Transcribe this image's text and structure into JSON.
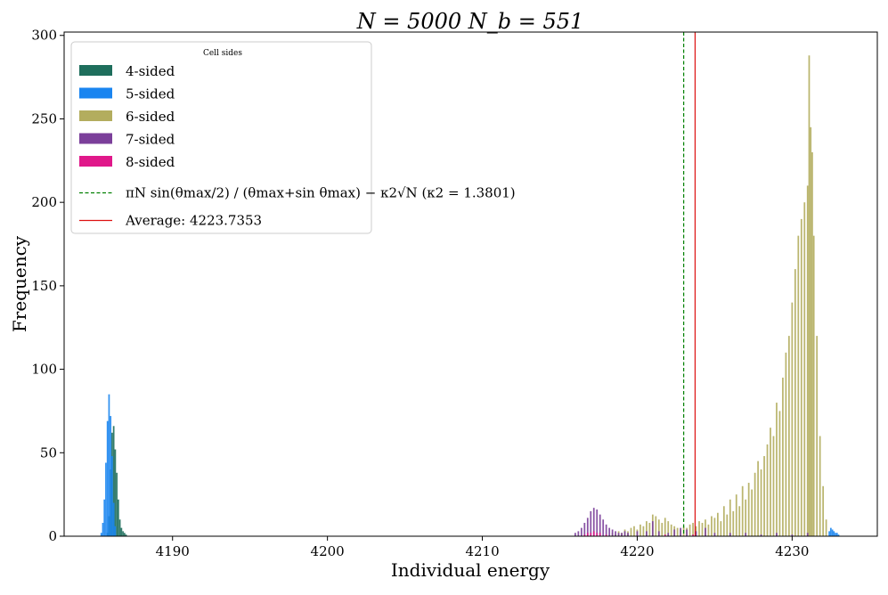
{
  "chart_data": {
    "type": "bar",
    "title": "N = 5000 N_b = 551",
    "xlabel": "Individual energy",
    "ylabel": "Frequency",
    "xlim": [
      4183.0,
      4235.5
    ],
    "ylim": [
      0,
      302
    ],
    "xticks": [
      4190,
      4200,
      4210,
      4220,
      4230
    ],
    "yticks": [
      0,
      50,
      100,
      150,
      200,
      250,
      300
    ],
    "grid": false,
    "legend_title": "Cell sides",
    "legend_position": "top-left",
    "bin_width": 0.1,
    "series": [
      {
        "name": "4-sided",
        "color": "#1e6e5c",
        "x": [
          4185.8,
          4185.9,
          4186.0,
          4186.1,
          4186.2,
          4186.3,
          4186.4,
          4186.5,
          4186.6,
          4186.7,
          4186.8,
          4186.9,
          4187.0
        ],
        "values": [
          2,
          12,
          40,
          62,
          66,
          52,
          38,
          22,
          10,
          5,
          3,
          2,
          1
        ]
      },
      {
        "name": "5-sided",
        "color": "#1a85f0",
        "x": [
          4185.4,
          4185.5,
          4185.6,
          4185.7,
          4185.8,
          4185.9,
          4186.0,
          4186.1,
          4186.2,
          4186.3,
          4232.4,
          4232.5,
          4232.6,
          4232.7,
          4232.8,
          4232.9,
          4233.0
        ],
        "values": [
          2,
          8,
          22,
          44,
          69,
          85,
          72,
          48,
          20,
          6,
          3,
          5,
          4,
          3,
          2,
          2,
          1
        ]
      },
      {
        "name": "6-sided",
        "color": "#b3ad5e",
        "x": [
          4218.4,
          4218.6,
          4218.8,
          4219.0,
          4219.2,
          4219.4,
          4219.6,
          4219.8,
          4220.0,
          4220.2,
          4220.4,
          4220.6,
          4220.8,
          4221.0,
          4221.2,
          4221.4,
          4221.6,
          4221.8,
          4222.0,
          4222.2,
          4222.4,
          4222.6,
          4222.8,
          4223.0,
          4223.2,
          4223.4,
          4223.6,
          4223.8,
          4224.0,
          4224.2,
          4224.4,
          4224.6,
          4224.8,
          4225.0,
          4225.2,
          4225.4,
          4225.6,
          4225.8,
          4226.0,
          4226.2,
          4226.4,
          4226.6,
          4226.8,
          4227.0,
          4227.2,
          4227.4,
          4227.6,
          4227.8,
          4228.0,
          4228.2,
          4228.4,
          4228.6,
          4228.8,
          4229.0,
          4229.2,
          4229.4,
          4229.6,
          4229.8,
          4230.0,
          4230.2,
          4230.4,
          4230.6,
          4230.8,
          4231.0,
          4231.1,
          4231.2,
          4231.3,
          4231.4,
          4231.6,
          4231.8,
          4232.0,
          4232.2
        ],
        "values": [
          2,
          1,
          3,
          2,
          4,
          3,
          5,
          6,
          4,
          7,
          6,
          9,
          8,
          13,
          12,
          10,
          8,
          11,
          9,
          7,
          6,
          5,
          4,
          6,
          5,
          7,
          8,
          6,
          9,
          8,
          10,
          7,
          12,
          11,
          14,
          9,
          18,
          13,
          22,
          15,
          25,
          18,
          30,
          22,
          32,
          28,
          38,
          45,
          40,
          48,
          55,
          65,
          60,
          80,
          75,
          95,
          110,
          120,
          140,
          160,
          180,
          190,
          200,
          210,
          288,
          245,
          230,
          180,
          120,
          60,
          30,
          10
        ]
      },
      {
        "name": "7-sided",
        "color": "#7b3f9a",
        "x": [
          4216.0,
          4216.2,
          4216.4,
          4216.6,
          4216.8,
          4217.0,
          4217.2,
          4217.4,
          4217.6,
          4217.8,
          4218.0,
          4218.2,
          4218.4,
          4218.6,
          4218.8,
          4219.0,
          4219.2,
          4219.4,
          4220.0,
          4220.6,
          4221.0,
          4221.4,
          4222.0,
          4222.4,
          4222.8,
          4223.2,
          4223.8,
          4224.4,
          4225.0,
          4226.0,
          4227.0,
          4228.0,
          4229.0,
          4230.0,
          4231.0
        ],
        "values": [
          2,
          3,
          5,
          8,
          11,
          15,
          17,
          16,
          13,
          10,
          7,
          5,
          4,
          3,
          2,
          2,
          3,
          2,
          3,
          3,
          9,
          3,
          2,
          4,
          5,
          4,
          3,
          5,
          2,
          2,
          2,
          1,
          2,
          1,
          2
        ]
      },
      {
        "name": "8-sided",
        "color": "#e0188a",
        "x": [
          4216.6,
          4216.8,
          4217.0,
          4217.2,
          4217.4,
          4217.6,
          4218.0,
          4221.8,
          4223.6
        ],
        "values": [
          1,
          2,
          2,
          3,
          2,
          2,
          1,
          1,
          1
        ]
      }
    ],
    "lines": [
      {
        "name": "πN sin(θmax/2) / (θmax+sin θmax) − κ2√N (κ2 = 1.3801)",
        "x": 4223.0,
        "color": "#008000",
        "style": "dashed"
      },
      {
        "name": "Average: 4223.7353",
        "x": 4223.7353,
        "color": "#dd1111",
        "style": "solid"
      }
    ]
  }
}
